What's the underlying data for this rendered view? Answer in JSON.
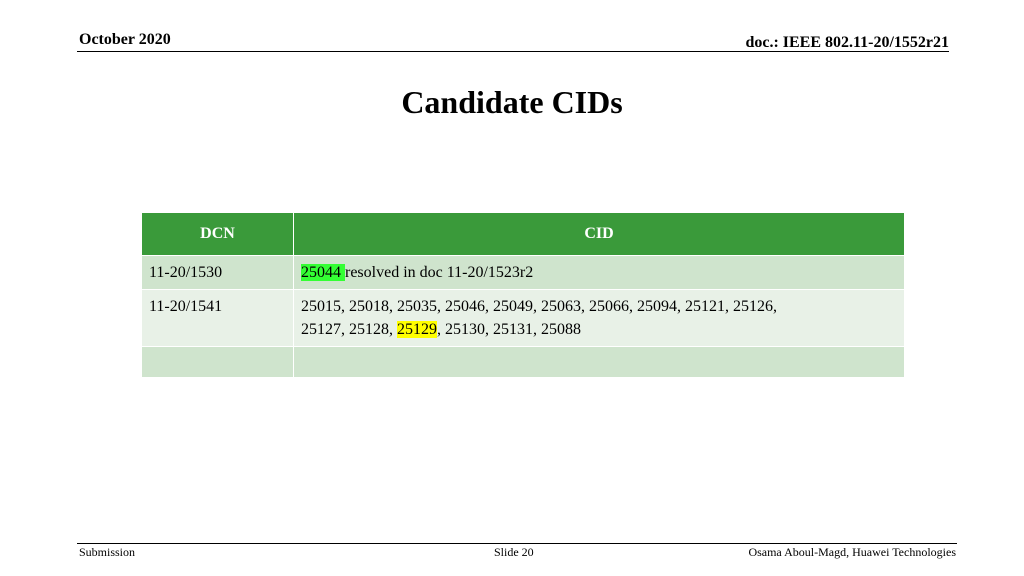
{
  "header": {
    "date": "October 2020",
    "doc": "doc.: IEEE 802.11-20/1552r21"
  },
  "title": "Candidate CIDs",
  "table": {
    "headers": [
      "DCN",
      "CID"
    ],
    "rows": [
      {
        "dcn": "11-20/1530",
        "cid_highlight": "25044 ",
        "cid_rest": "resolved in doc 11-20/1523r2"
      },
      {
        "dcn": "11-20/1541",
        "cid_line1": "25015, 25018, 25035, 25046, 25049, 25063, 25066, 25094, 25121, 25126,",
        "cid_line2_a": "25127, 25128, ",
        "cid_line2_highlight": "25129",
        "cid_line2_b": ", 25130, 25131, 25088"
      },
      {
        "dcn": "",
        "cid": ""
      }
    ]
  },
  "highlight_colors": {
    "green": "#33ff33",
    "yellow": "#ffff00"
  },
  "footer": {
    "left": "Submission",
    "center": "Slide 20",
    "right": "Osama Aboul-Magd, Huawei Technologies"
  }
}
